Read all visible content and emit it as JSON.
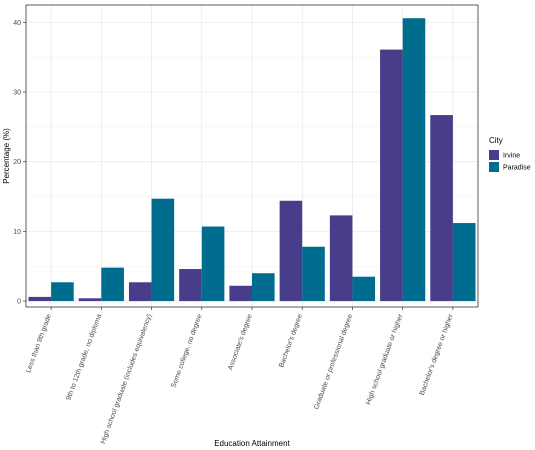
{
  "chart_data": {
    "type": "bar",
    "title": "",
    "xlabel": "Education Attainment",
    "ylabel": "Percentage (%)",
    "ylim": [
      -0.85,
      42.5
    ],
    "yticks": [
      0,
      10,
      20,
      30,
      40
    ],
    "grid": true,
    "legend_position": "right",
    "legend_title": "City",
    "categories": [
      "Less than 9th grade",
      "9th to 12th grade, no diploma",
      "High school graduate (includes equivalency)",
      "Some college, no degree",
      "Associate's degree",
      "Bachelor's degree",
      "Graduate or professional degree",
      "High school graduate or higher",
      "Bachelor's degree or higher"
    ],
    "series": [
      {
        "name": "Irvine",
        "color": "#483d8b",
        "values": [
          0.6,
          0.4,
          2.7,
          4.6,
          2.2,
          14.4,
          12.3,
          36.1,
          26.7
        ]
      },
      {
        "name": "Paradise",
        "color": "#006d8f",
        "values": [
          2.7,
          4.8,
          14.7,
          10.7,
          4.0,
          7.8,
          3.5,
          40.6,
          11.2
        ]
      }
    ]
  }
}
